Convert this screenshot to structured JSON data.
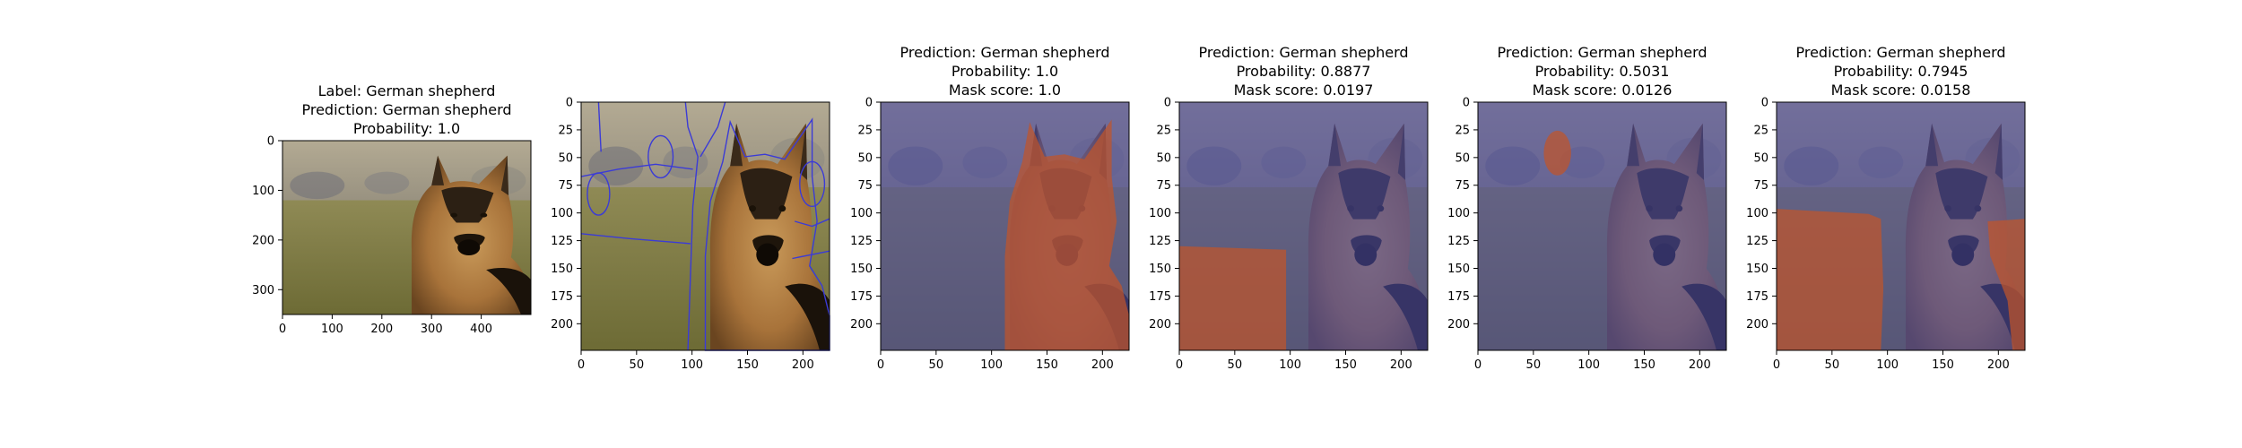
{
  "chart_data": [
    {
      "type": "image",
      "title": [
        "Label: German shepherd",
        "Prediction: German shepherd",
        "Probability: 1.0"
      ],
      "x_ticks": [
        0,
        100,
        200,
        300,
        400
      ],
      "y_ticks": [
        0,
        100,
        200,
        300
      ],
      "xlim": [
        0,
        500
      ],
      "ylim": [
        350,
        0
      ],
      "overlay": "none"
    },
    {
      "type": "image",
      "title": [],
      "x_ticks": [
        0,
        50,
        100,
        150,
        200
      ],
      "y_ticks": [
        0,
        25,
        50,
        75,
        100,
        125,
        150,
        175,
        200
      ],
      "xlim": [
        0,
        224
      ],
      "ylim": [
        224,
        0
      ],
      "overlay": "segments"
    },
    {
      "type": "image",
      "title": [
        "Prediction: German shepherd",
        "Probability: 1.0",
        "Mask score: 1.0"
      ],
      "x_ticks": [
        0,
        50,
        100,
        150,
        200
      ],
      "y_ticks": [
        0,
        25,
        50,
        75,
        100,
        125,
        150,
        175,
        200
      ],
      "xlim": [
        0,
        224
      ],
      "ylim": [
        224,
        0
      ],
      "overlay": "mask-dog"
    },
    {
      "type": "image",
      "title": [
        "Prediction: German shepherd",
        "Probability: 0.8877",
        "Mask score: 0.0197"
      ],
      "x_ticks": [
        0,
        50,
        100,
        150,
        200
      ],
      "y_ticks": [
        0,
        25,
        50,
        75,
        100,
        125,
        150,
        175,
        200
      ],
      "xlim": [
        0,
        224
      ],
      "ylim": [
        224,
        0
      ],
      "overlay": "mask-grass-left"
    },
    {
      "type": "image",
      "title": [
        "Prediction: German shepherd",
        "Probability: 0.5031",
        "Mask score: 0.0126"
      ],
      "x_ticks": [
        0,
        50,
        100,
        150,
        200
      ],
      "y_ticks": [
        0,
        25,
        50,
        75,
        100,
        125,
        150,
        175,
        200
      ],
      "xlim": [
        0,
        224
      ],
      "ylim": [
        224,
        0
      ],
      "overlay": "mask-blob"
    },
    {
      "type": "image",
      "title": [
        "Prediction: German shepherd",
        "Probability: 0.7945",
        "Mask score: 0.0158"
      ],
      "x_ticks": [
        0,
        50,
        100,
        150,
        200
      ],
      "y_ticks": [
        0,
        25,
        50,
        75,
        100,
        125,
        150,
        175,
        200
      ],
      "xlim": [
        0,
        224
      ],
      "ylim": [
        224,
        0
      ],
      "overlay": "mask-grass-both"
    }
  ],
  "colors": {
    "mask_in": "#c0542a",
    "mask_out": "#4a4aa0",
    "segment_line": "#3b3bd6"
  }
}
